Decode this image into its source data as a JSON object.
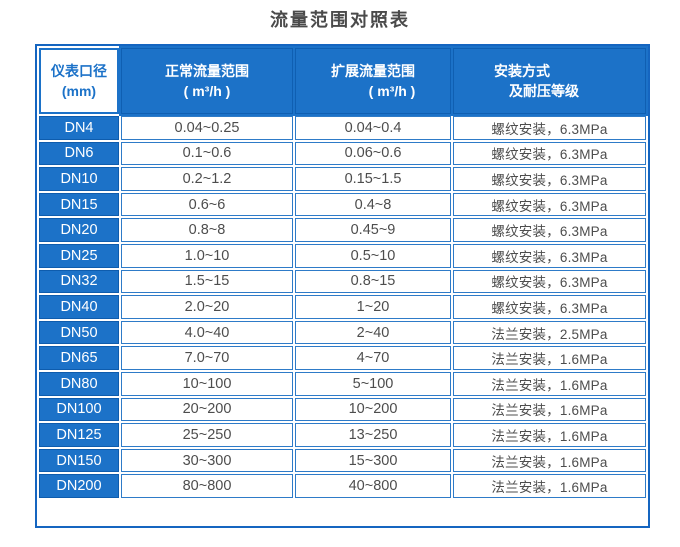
{
  "title": "流量范围对照表",
  "colors": {
    "header_blue": "#1c72c8",
    "grid_blue": "#2e7bc8",
    "outer_border_blue": "#1565c0",
    "data_text": "#4d4d4d",
    "title_text": "#4a4a4a"
  },
  "chart_data": {
    "type": "table",
    "title": "流量范围对照表",
    "headers": [
      {
        "lines": [
          "仪表口径",
          "(mm)"
        ]
      },
      {
        "lines": [
          "正常流量范围",
          "( m³/h )"
        ]
      },
      {
        "lines": [
          "扩展流量范围",
          "( m³/h )"
        ]
      },
      {
        "lines": [
          "安装方式",
          "及耐压等级"
        ]
      }
    ],
    "rows": [
      [
        "DN4",
        "0.04~0.25",
        "0.04~0.4",
        "螺纹安装，6.3MPa"
      ],
      [
        "DN6",
        "0.1~0.6",
        "0.06~0.6",
        "螺纹安装，6.3MPa"
      ],
      [
        "DN10",
        "0.2~1.2",
        "0.15~1.5",
        "螺纹安装，6.3MPa"
      ],
      [
        "DN15",
        "0.6~6",
        "0.4~8",
        "螺纹安装，6.3MPa"
      ],
      [
        "DN20",
        "0.8~8",
        "0.45~9",
        "螺纹安装，6.3MPa"
      ],
      [
        "DN25",
        "1.0~10",
        "0.5~10",
        "螺纹安装，6.3MPa"
      ],
      [
        "DN32",
        "1.5~15",
        "0.8~15",
        "螺纹安装，6.3MPa"
      ],
      [
        "DN40",
        "2.0~20",
        "1~20",
        "螺纹安装，6.3MPa"
      ],
      [
        "DN50",
        "4.0~40",
        "2~40",
        "法兰安装，2.5MPa"
      ],
      [
        "DN65",
        "7.0~70",
        "4~70",
        "法兰安装，1.6MPa"
      ],
      [
        "DN80",
        "10~100",
        "5~100",
        "法兰安装，1.6MPa"
      ],
      [
        "DN100",
        "20~200",
        "10~200",
        "法兰安装，1.6MPa"
      ],
      [
        "DN125",
        "25~250",
        "13~250",
        "法兰安装，1.6MPa"
      ],
      [
        "DN150",
        "30~300",
        "15~300",
        "法兰安装，1.6MPa"
      ],
      [
        "DN200",
        "80~800",
        "40~800",
        "法兰安装，1.6MPa"
      ]
    ]
  }
}
